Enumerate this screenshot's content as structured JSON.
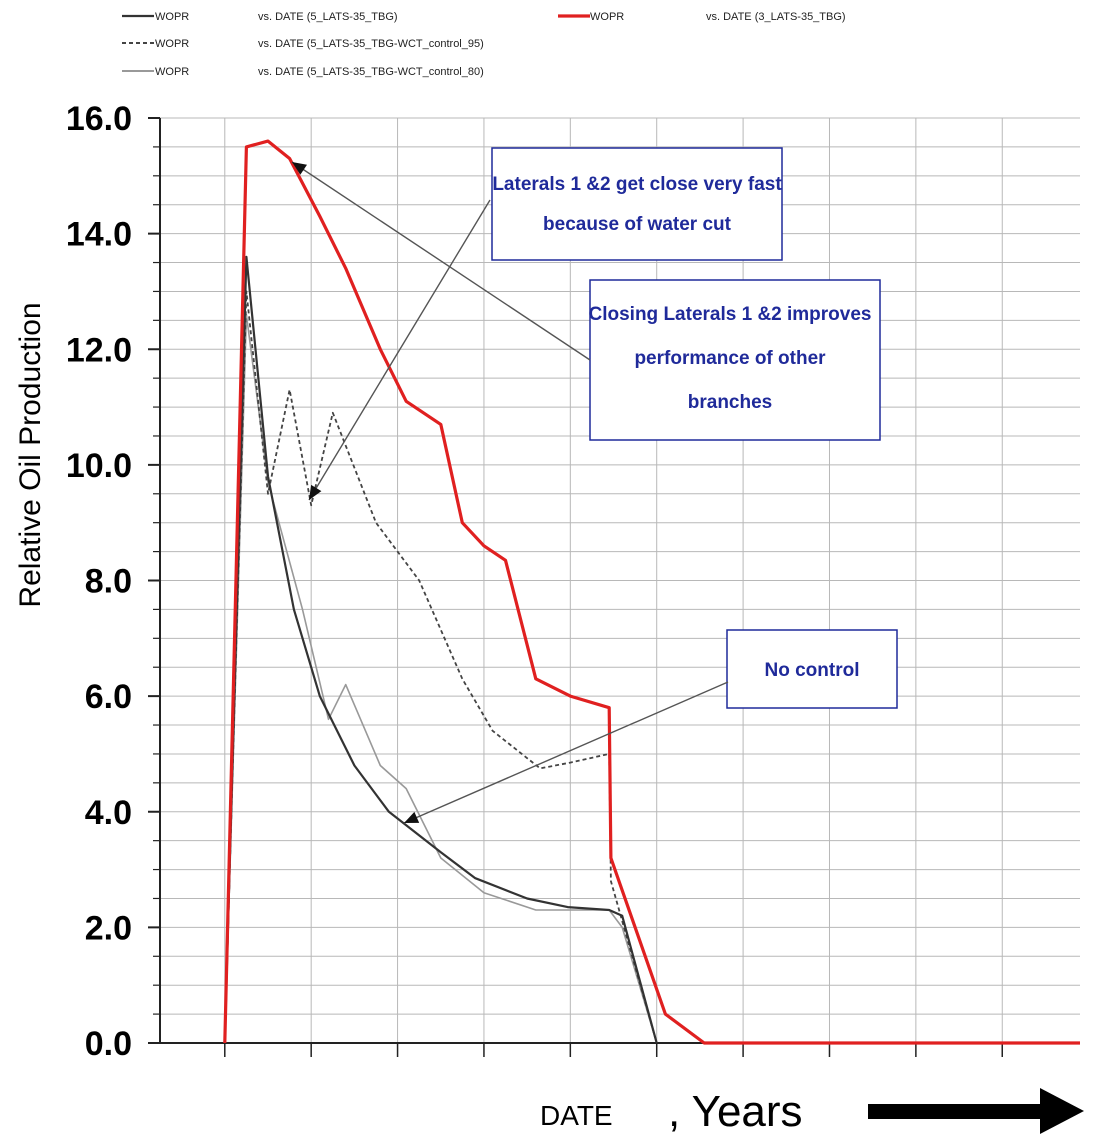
{
  "chart_data": {
    "type": "line",
    "title": "",
    "xlabel_main": "DATE",
    "xlabel_suffix": ", Years",
    "ylabel": "Relative Oil Production",
    "ylim": [
      0,
      16
    ],
    "xlim": [
      -0.75,
      9.9
    ],
    "yticks": [
      "0.0",
      "2.0",
      "4.0",
      "6.0",
      "8.0",
      "10.0",
      "12.0",
      "14.0",
      "16.0"
    ],
    "grid": true,
    "legend_position": "top",
    "colors": {
      "black": "#333333",
      "red": "#e02020",
      "gray": "#999999",
      "annot": "#1f2a9a",
      "grid": "#b8b8b8"
    },
    "legend": [
      {
        "name": "WOPR",
        "desc": "vs. DATE (5_LATS-35_TBG)",
        "style": "solid-dark"
      },
      {
        "name": "WOPR",
        "desc": "vs. DATE (3_LATS-35_TBG)",
        "style": "solid-red"
      },
      {
        "name": "WOPR",
        "desc": "vs. DATE (5_LATS-35_TBG-WCT_control_95)",
        "style": "dashed-dark"
      },
      {
        "name": "WOPR",
        "desc": "vs. DATE (5_LATS-35_TBG-WCT_control_80)",
        "style": "solid-light"
      }
    ],
    "series": [
      {
        "name": "WOPR vs. DATE (5_LATS-35_TBG)",
        "style": "solid-dark",
        "x": [
          0,
          0.25,
          0.5,
          0.8,
          1.1,
          1.5,
          1.9,
          2.5,
          2.9,
          3.5,
          3.97,
          4.45,
          4.6,
          5.0
        ],
        "y": [
          0,
          13.6,
          9.8,
          7.5,
          6.0,
          4.8,
          4.0,
          3.3,
          2.85,
          2.5,
          2.35,
          2.3,
          2.2,
          0
        ]
      },
      {
        "name": "WOPR vs. DATE (3_LATS-35_TBG)",
        "style": "solid-red",
        "x": [
          0,
          0.25,
          0.5,
          0.75,
          1.1,
          1.4,
          1.8,
          2.1,
          2.5,
          2.75,
          3.0,
          3.25,
          3.6,
          4.0,
          4.45,
          4.47,
          5.1,
          5.55,
          9.9
        ],
        "y": [
          0,
          15.5,
          15.6,
          15.3,
          14.3,
          13.4,
          12.0,
          11.1,
          10.7,
          9.0,
          8.6,
          8.35,
          6.3,
          6.0,
          5.8,
          3.2,
          0.5,
          0,
          0
        ]
      },
      {
        "name": "WOPR vs. DATE (5_LATS-35_TBG-WCT_control_95)",
        "style": "dashed-dark",
        "x": [
          0,
          0.25,
          0.5,
          0.75,
          1.0,
          1.25,
          1.75,
          2.25,
          2.75,
          3.1,
          3.65,
          4.0,
          4.45,
          4.47,
          5.0
        ],
        "y": [
          0,
          13.0,
          9.5,
          11.3,
          9.3,
          10.9,
          9.0,
          8.0,
          6.3,
          5.4,
          4.75,
          4.85,
          5.0,
          2.8,
          0
        ]
      },
      {
        "name": "WOPR vs. DATE (5_LATS-35_TBG-WCT_control_80)",
        "style": "solid-light",
        "x": [
          0,
          0.25,
          0.5,
          0.9,
          1.2,
          1.4,
          1.8,
          2.1,
          2.5,
          3.0,
          3.6,
          4.0,
          4.45,
          4.6,
          5.0
        ],
        "y": [
          0,
          12.6,
          9.7,
          7.5,
          5.6,
          6.2,
          4.8,
          4.4,
          3.2,
          2.6,
          2.3,
          2.3,
          2.3,
          2.0,
          0
        ]
      }
    ],
    "annotations": [
      {
        "lines": [
          "Laterals 1 &2 get close very fast",
          "because of water cut"
        ]
      },
      {
        "lines": [
          "Closing Laterals 1 &2 improves",
          "performance of other",
          "branches"
        ]
      },
      {
        "lines": [
          "No control"
        ]
      }
    ]
  }
}
